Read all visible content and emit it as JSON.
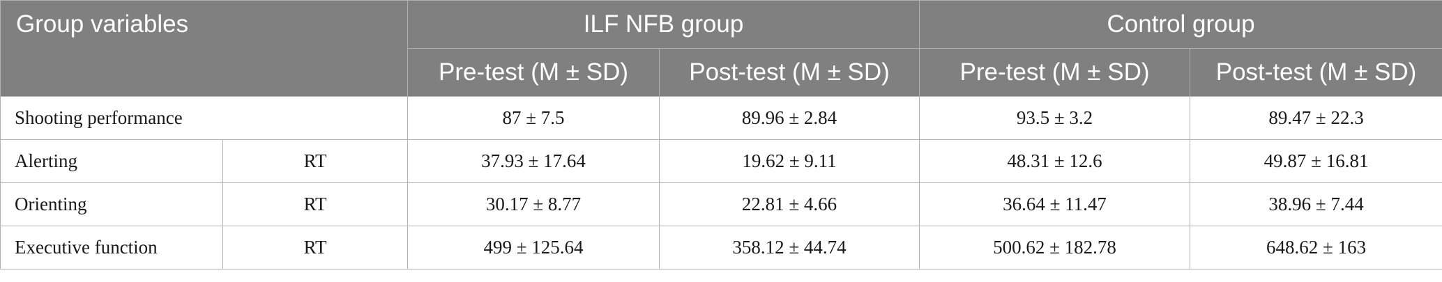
{
  "table": {
    "header": {
      "group_variables": "Group variables",
      "ilf_group": "ILF NFB group",
      "control_group": "Control group",
      "pre_test": "Pre-test (M ± SD)",
      "post_test": "Post-test (M ± SD)"
    },
    "rows": [
      {
        "variable": "Shooting performance",
        "measure": "",
        "ilf_pre": "87 ± 7.5",
        "ilf_post": "89.96 ± 2.84",
        "ctrl_pre": "93.5 ± 3.2",
        "ctrl_post": "89.47 ± 22.3"
      },
      {
        "variable": "Alerting",
        "measure": "RT",
        "ilf_pre": "37.93 ± 17.64",
        "ilf_post": "19.62 ± 9.11",
        "ctrl_pre": "48.31 ± 12.6",
        "ctrl_post": "49.87 ± 16.81"
      },
      {
        "variable": "Orienting",
        "measure": "RT",
        "ilf_pre": "30.17 ± 8.77",
        "ilf_post": "22.81 ± 4.66",
        "ctrl_pre": "36.64 ± 11.47",
        "ctrl_post": "38.96 ± 7.44"
      },
      {
        "variable": "Executive function",
        "measure": "RT",
        "ilf_pre": "499 ± 125.64",
        "ilf_post": "358.12 ± 44.74",
        "ctrl_pre": "500.62 ± 182.78",
        "ctrl_post": "648.62 ± 163"
      }
    ]
  }
}
